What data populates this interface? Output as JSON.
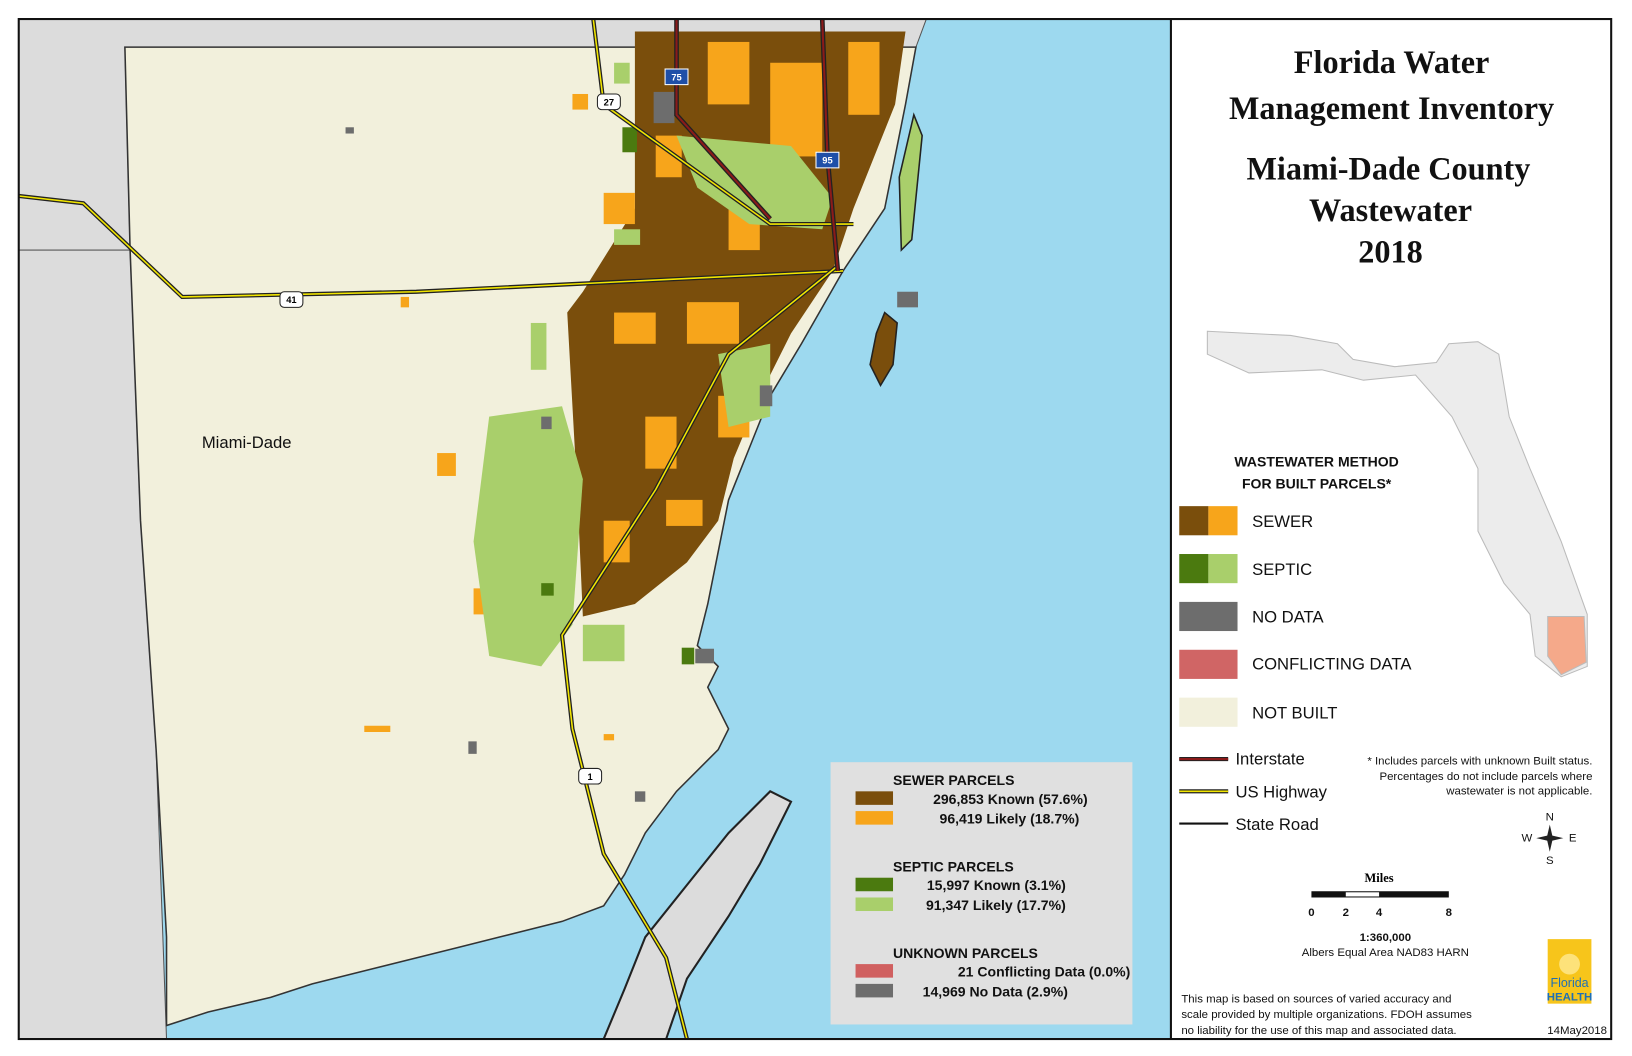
{
  "header": {
    "title_lines": [
      "Florida Water",
      "Management Inventory"
    ],
    "subtitle_lines": [
      "Miami-Dade County",
      "Wastewater",
      "2018"
    ]
  },
  "map": {
    "county_label": "Miami-Dade",
    "shields": [
      "75",
      "95",
      "27",
      "41",
      "1"
    ]
  },
  "legend": {
    "heading_lines": [
      "WASTEWATER METHOD",
      "FOR BUILT PARCELS*"
    ],
    "items": [
      "SEWER",
      "SEPTIC",
      "NO DATA",
      "CONFLICTING DATA",
      "NOT BUILT"
    ],
    "roads": [
      "Interstate",
      "US Highway",
      "State Road"
    ]
  },
  "footnote": [
    "* Includes parcels with unknown Built status.",
    "Percentages do not include parcels where",
    "wastewater is not applicable."
  ],
  "compass": [
    "N",
    "W",
    "E",
    "S"
  ],
  "scale": {
    "unit": "Miles",
    "ticks": [
      "0",
      "2",
      "4",
      "8"
    ],
    "ratio": "1:360,000",
    "projection": "Albers Equal Area NAD83 HARN"
  },
  "parcels": [
    {
      "title": "SEWER PARCELS",
      "items": [
        "296,853 Known (57.6%)",
        "96,419 Likely (18.7%)"
      ]
    },
    {
      "title": "SEPTIC PARCELS",
      "items": [
        "15,997 Known (3.1%)",
        "91,347 Likely (17.7%)"
      ]
    },
    {
      "title": "UNKNOWN PARCELS",
      "items": [
        "21 Conflicting Data (0.0%)",
        "14,969 No Data (2.9%)"
      ]
    }
  ],
  "disclaimer": [
    "This map is based on sources of varied accuracy and",
    "scale provided by multiple organizations. FDOH assumes",
    "no liability for the use of this map and associated data."
  ],
  "date": "14May2018",
  "logo": [
    "Florida",
    "HEALTH"
  ]
}
